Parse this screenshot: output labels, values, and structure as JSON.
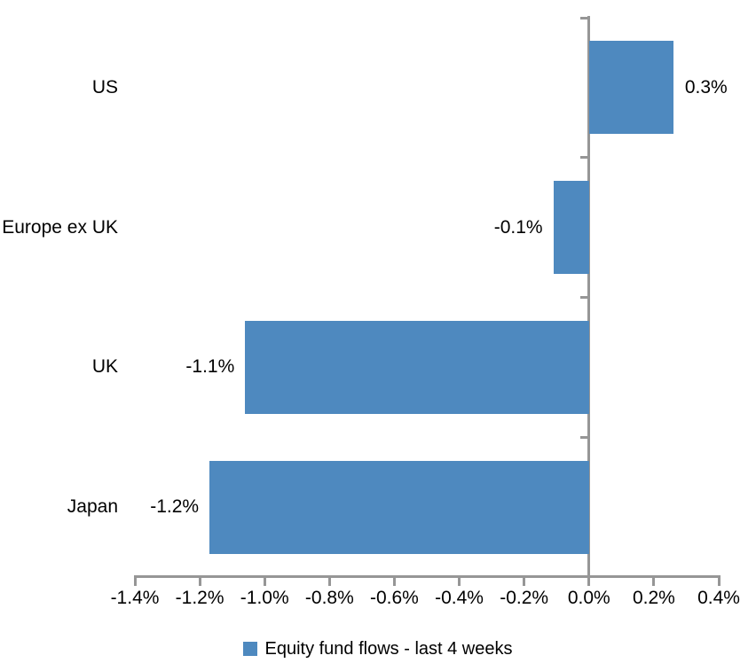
{
  "chart_data": {
    "type": "bar",
    "orientation": "horizontal",
    "title": "",
    "xlabel": "",
    "ylabel": "",
    "categories": [
      "US",
      "Europe ex UK",
      "UK",
      "Japan"
    ],
    "series": [
      {
        "name": "Equity fund flows - last 4 weeks",
        "values": [
          0.3,
          -0.1,
          -1.1,
          -1.2
        ],
        "values_as_drawn": [
          0.26,
          -0.11,
          -1.06,
          -1.17
        ],
        "data_labels": [
          "0.3%",
          "-0.1%",
          "-1.1%",
          "-1.2%"
        ]
      }
    ],
    "xlim": [
      -1.4,
      0.4
    ],
    "x_tick_step": 0.2,
    "x_tick_labels": [
      "-1.4%",
      "-1.2%",
      "-1.0%",
      "-0.8%",
      "-0.6%",
      "-0.4%",
      "-0.2%",
      "0.0%",
      "0.2%",
      "0.4%"
    ],
    "grid": false,
    "legend_position": "bottom"
  },
  "legend": {
    "items": [
      {
        "label": "Equity fund flows - last 4 weeks",
        "color": "#4E89BF"
      }
    ]
  },
  "colors": {
    "bar": "#4E89BF",
    "axis": "#969696",
    "text": "#000000",
    "background": "#FFFFFF"
  }
}
